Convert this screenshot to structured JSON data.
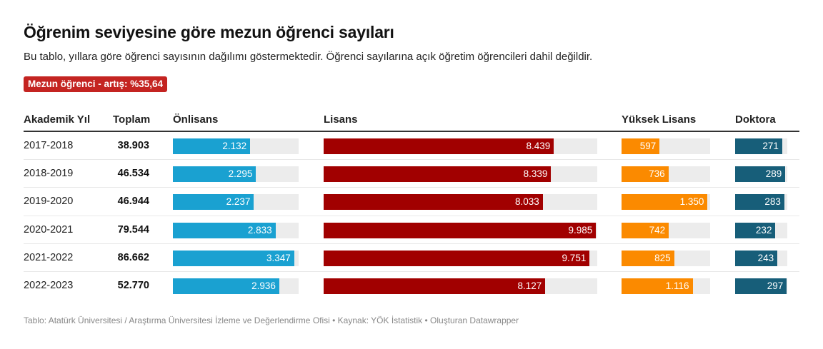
{
  "title": "Öğrenim seviyesine göre mezun öğrenci sayıları",
  "description": "Bu tablo, yıllara göre öğrenci sayısının dağılımı göstermektedir. Öğrenci sayılarına açık öğretim öğrencileri dahil değildir.",
  "badge": {
    "label": "Mezun öğrenci - artış: %35,64",
    "color": "#c42421"
  },
  "footer": "Tablo: Atatürk Üniversitesi / Araştırma Üniversitesi İzleme ve Değerlendirme Ofisi • Kaynak: YÖK İstatistik • Oluşturan Datawrapper",
  "chart_data": {
    "type": "table",
    "title": "Öğrenim seviyesine göre mezun öğrenci sayıları",
    "columns": [
      "Akademik Yıl",
      "Toplam",
      "Önlisans",
      "Lisans",
      "Yüksek Lisans",
      "Doktora"
    ],
    "bar_columns": [
      {
        "key": "onlisans",
        "color": "#1aa1d1",
        "max": 3470
      },
      {
        "key": "lisans",
        "color": "#a10000",
        "max": 10030
      },
      {
        "key": "yuksek_lisans",
        "color": "#fb8a00",
        "max": 1390
      },
      {
        "key": "doktora",
        "color": "#175e79",
        "max": 300
      }
    ],
    "rows": [
      {
        "year": "2017-2018",
        "total": "38.903",
        "onlisans": 2132,
        "onlisans_label": "2.132",
        "lisans": 8439,
        "lisans_label": "8.439",
        "yuksek_lisans": 597,
        "yuksek_lisans_label": "597",
        "doktora": 271,
        "doktora_label": "271"
      },
      {
        "year": "2018-2019",
        "total": "46.534",
        "onlisans": 2295,
        "onlisans_label": "2.295",
        "lisans": 8339,
        "lisans_label": "8.339",
        "yuksek_lisans": 736,
        "yuksek_lisans_label": "736",
        "doktora": 289,
        "doktora_label": "289"
      },
      {
        "year": "2019-2020",
        "total": "46.944",
        "onlisans": 2237,
        "onlisans_label": "2.237",
        "lisans": 8033,
        "lisans_label": "8.033",
        "yuksek_lisans": 1350,
        "yuksek_lisans_label": "1.350",
        "doktora": 283,
        "doktora_label": "283"
      },
      {
        "year": "2020-2021",
        "total": "79.544",
        "onlisans": 2833,
        "onlisans_label": "2.833",
        "lisans": 9985,
        "lisans_label": "9.985",
        "yuksek_lisans": 742,
        "yuksek_lisans_label": "742",
        "doktora": 232,
        "doktora_label": "232"
      },
      {
        "year": "2021-2022",
        "total": "86.662",
        "onlisans": 3347,
        "onlisans_label": "3.347",
        "lisans": 9751,
        "lisans_label": "9.751",
        "yuksek_lisans": 825,
        "yuksek_lisans_label": "825",
        "doktora": 243,
        "doktora_label": "243"
      },
      {
        "year": "2022-2023",
        "total": "52.770",
        "onlisans": 2936,
        "onlisans_label": "2.936",
        "lisans": 8127,
        "lisans_label": "8.127",
        "yuksek_lisans": 1116,
        "yuksek_lisans_label": "1.116",
        "doktora": 297,
        "doktora_label": "297"
      }
    ]
  }
}
